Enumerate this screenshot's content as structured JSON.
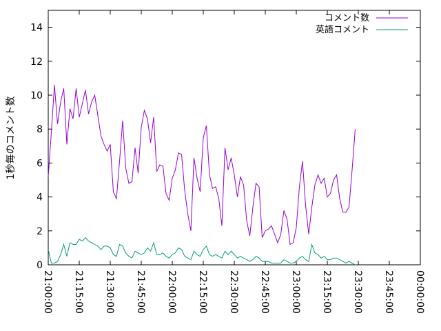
{
  "chart_data": {
    "type": "line",
    "ylabel": "1秒毎のコメント数",
    "xlabel": "",
    "ylim": [
      0,
      15
    ],
    "yticks": [
      0,
      2,
      4,
      6,
      8,
      10,
      12,
      14
    ],
    "x_tick_labels": [
      "21:00:00",
      "21:15:00",
      "21:30:00",
      "21:45:00",
      "22:00:00",
      "22:15:00",
      "22:30:00",
      "22:45:00",
      "23:00:00",
      "23:15:00",
      "23:30:00",
      "23:45:00",
      "00:00:00"
    ],
    "x_start": "21:00:00",
    "x_end": "00:00:00",
    "x_interval_seconds": 90,
    "legend_position": "top-right",
    "grid": false,
    "series": [
      {
        "name": "コメント数",
        "color": "#9400d3",
        "values": [
          5.2,
          7.8,
          10.6,
          8.3,
          9.6,
          10.4,
          7.1,
          9.2,
          8.6,
          10.4,
          8.7,
          9.5,
          10.3,
          8.9,
          9.6,
          10.0,
          8.8,
          7.6,
          7.1,
          6.7,
          7.1,
          4.3,
          3.9,
          6.1,
          8.5,
          5.7,
          4.8,
          4.9,
          6.9,
          5.4,
          8.1,
          9.1,
          8.6,
          7.2,
          8.7,
          5.5,
          5.9,
          5.8,
          4.2,
          3.8,
          5.1,
          5.6,
          6.6,
          6.5,
          4.4,
          3.0,
          2.0,
          6.3,
          5.1,
          4.3,
          7.5,
          8.2,
          5.3,
          4.5,
          4.6,
          3.9,
          2.3,
          6.9,
          5.6,
          6.3,
          5.3,
          4.0,
          5.2,
          4.7,
          2.6,
          1.7,
          3.4,
          4.8,
          4.6,
          1.6,
          2.0,
          2.1,
          2.3,
          1.8,
          1.3,
          1.8,
          3.2,
          2.7,
          1.2,
          1.3,
          2.2,
          4.6,
          6.1,
          3.5,
          1.8,
          3.4,
          4.7,
          5.3,
          4.8,
          5.1,
          4.0,
          4.2,
          5.0,
          5.3,
          3.9,
          3.1,
          3.1,
          3.4,
          5.6,
          8.0
        ]
      },
      {
        "name": "英語コメント",
        "color": "#009e73",
        "values": [
          0.9,
          0.1,
          0.1,
          0.2,
          0.6,
          1.2,
          0.5,
          1.3,
          1.2,
          1.2,
          1.5,
          1.4,
          1.6,
          1.4,
          1.3,
          1.2,
          1.1,
          0.9,
          1.1,
          1.1,
          1.0,
          0.6,
          0.5,
          1.2,
          1.1,
          0.7,
          0.5,
          0.4,
          0.8,
          0.7,
          0.6,
          0.7,
          1.0,
          0.8,
          1.3,
          0.6,
          0.6,
          0.7,
          0.5,
          0.4,
          0.6,
          0.7,
          1.0,
          0.9,
          0.5,
          0.4,
          0.3,
          0.8,
          0.6,
          0.5,
          0.9,
          1.1,
          0.6,
          0.5,
          0.6,
          0.5,
          0.4,
          0.8,
          0.6,
          0.8,
          0.6,
          0.4,
          0.5,
          0.4,
          0.3,
          0.2,
          0.3,
          0.5,
          0.4,
          0.2,
          0.2,
          0.2,
          0.1,
          0.1,
          0.1,
          0.1,
          0.3,
          0.2,
          0.1,
          0.1,
          0.2,
          0.4,
          0.5,
          0.3,
          0.2,
          1.2,
          0.7,
          0.6,
          0.4,
          0.5,
          0.3,
          0.3,
          0.4,
          0.4,
          0.3,
          0.2,
          0.1,
          0.2,
          0.1,
          0.0
        ]
      }
    ]
  }
}
